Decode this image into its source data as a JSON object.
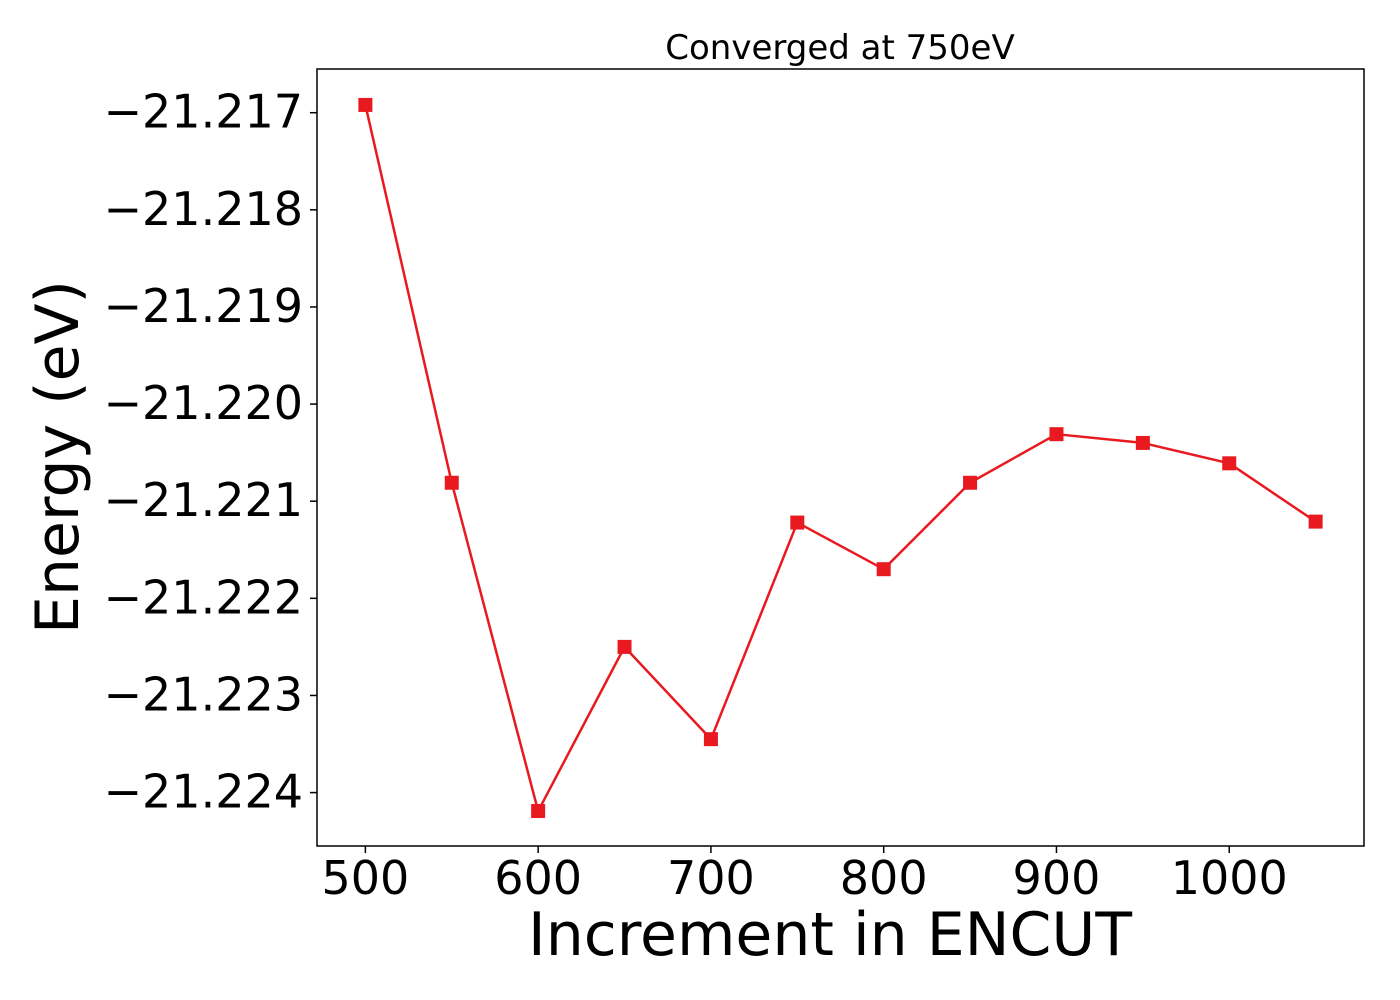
{
  "chart_data": {
    "type": "line",
    "title": "Converged at 750eV",
    "xlabel": "Increment in ENCUT",
    "ylabel": "Energy (eV)",
    "x": [
      500,
      550,
      600,
      650,
      700,
      750,
      800,
      850,
      900,
      950,
      1000,
      1050
    ],
    "series": [
      {
        "values": [
          -21.21692,
          -21.22081,
          -21.22419,
          -21.2225,
          -21.22345,
          -21.22122,
          -21.2217,
          -21.22081,
          -21.22031,
          -21.2204,
          -21.22061,
          -21.22121
        ],
        "color": "#e8191f",
        "marker": "square"
      }
    ],
    "xlim": [
      472,
      1078
    ],
    "ylim": [
      -21.22455,
      -21.21655
    ],
    "xticks": [
      500,
      600,
      700,
      800,
      900,
      1000
    ],
    "xtick_labels": [
      "500",
      "600",
      "700",
      "800",
      "900",
      "1000"
    ],
    "yticks": [
      -21.217,
      -21.218,
      -21.219,
      -21.22,
      -21.221,
      -21.222,
      -21.223,
      -21.224
    ],
    "ytick_labels": [
      "−21.217",
      "−21.218",
      "−21.219",
      "−21.220",
      "−21.221",
      "−21.222",
      "−21.223",
      "−21.224"
    ],
    "grid": false,
    "legend": false
  }
}
